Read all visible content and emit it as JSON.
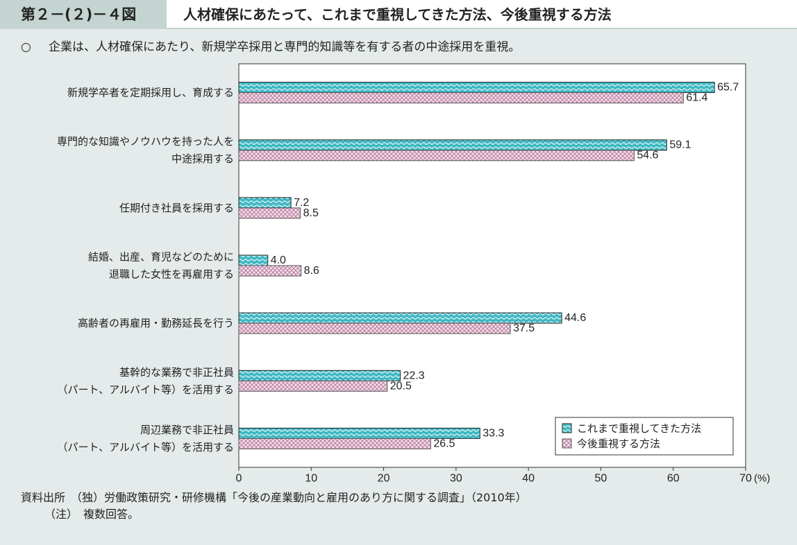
{
  "figure": {
    "number": "第２－(２)－４図",
    "title": "人材確保にあたって、これまで重視してきた方法、今後重視する方法",
    "summary_mark": "○",
    "summary": "企業は、人材確保にあたり、新規学卒採用と専門的知識等を有する者の中途採用を重視。"
  },
  "notes": {
    "source": "資料出所　（独）労働政策研究・研修機構「今後の産業動向と雇用のあり方に関する調査」（2010年）",
    "note": "（注）　複数回答。"
  },
  "colors": {
    "series1": "#3fb8c2",
    "series2": "#f2dcea",
    "series2_hatch": "#b07090"
  },
  "chart_data": {
    "type": "bar",
    "orientation": "horizontal",
    "categories": [
      [
        "新規学卒者を定期採用し、育成する"
      ],
      [
        "専門的な知識やノウハウを持った人を",
        "中途採用する"
      ],
      [
        "任期付き社員を採用する"
      ],
      [
        "結婚、出産、育児などのために",
        "退職した女性を再雇用する"
      ],
      [
        "高齢者の再雇用・勤務延長を行う"
      ],
      [
        "基幹的な業務で非正社員",
        "（パート、アルバイト等）を活用する"
      ],
      [
        "周辺業務で非正社員",
        "（パート、アルバイト等）を活用する"
      ]
    ],
    "series": [
      {
        "name": "これまで重視してきた方法",
        "values": [
          65.7,
          59.1,
          7.2,
          4.0,
          44.6,
          22.3,
          33.3
        ]
      },
      {
        "name": "今後重視する方法",
        "values": [
          61.4,
          54.6,
          8.5,
          8.6,
          37.5,
          20.5,
          26.5
        ]
      }
    ],
    "xlim": [
      0,
      70
    ],
    "xticks": [
      0,
      10,
      20,
      30,
      40,
      50,
      60,
      70
    ],
    "xunit": "(%)",
    "legend_position": "bottom-right",
    "grid": false
  }
}
